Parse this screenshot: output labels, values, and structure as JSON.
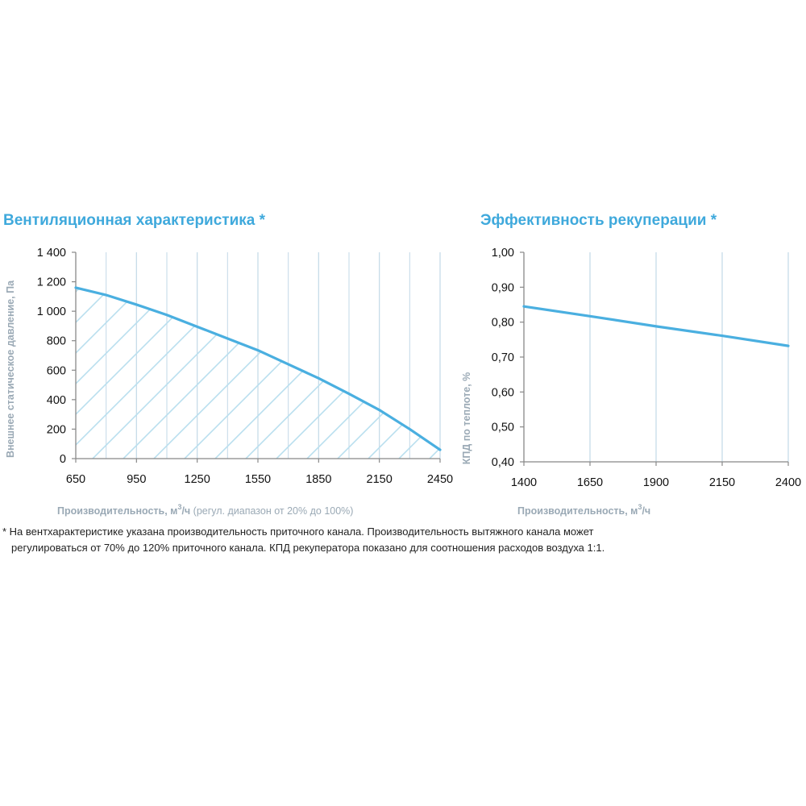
{
  "chart_data": [
    {
      "type": "area",
      "title": "Вентиляционная характеристика *",
      "xlabel": "Производительность, м",
      "xlabel_sup": "3",
      "xlabel_unit": "/ч",
      "xlabel_note": " (регул. диапазон от 20% до 100%)",
      "ylabel": "Внешнее статическое давление, Па",
      "xlim": [
        650,
        2450
      ],
      "ylim": [
        0,
        1400
      ],
      "x_ticks": [
        650,
        950,
        1250,
        1550,
        1850,
        2150,
        2450
      ],
      "x_tick_labels": [
        "650",
        "950",
        "1250",
        "1550",
        "1850",
        "2150",
        "2450"
      ],
      "y_ticks": [
        0,
        200,
        400,
        600,
        800,
        1000,
        1200,
        1400
      ],
      "y_tick_labels": [
        "0",
        "200",
        "400",
        "600",
        "800",
        "1 000",
        "1 200",
        "1 400"
      ],
      "grid": "vertical",
      "fill": "hatched",
      "series": [
        {
          "x": [
            650,
            800,
            950,
            1100,
            1250,
            1400,
            1550,
            1700,
            1850,
            2000,
            2150,
            2300,
            2450
          ],
          "y": [
            1160,
            1110,
            1045,
            975,
            895,
            815,
            735,
            640,
            545,
            440,
            330,
            200,
            60
          ]
        }
      ]
    },
    {
      "type": "line",
      "title": "Эффективность рекуперации *",
      "xlabel": "Производительность, м",
      "xlabel_sup": "3",
      "xlabel_unit": "/ч",
      "ylabel": "КПД по теплоте, %",
      "xlim": [
        1400,
        2400
      ],
      "ylim": [
        0.4,
        1.0
      ],
      "x_ticks": [
        1400,
        1650,
        1900,
        2150,
        2400
      ],
      "x_tick_labels": [
        "1400",
        "1650",
        "1900",
        "2150",
        "2400"
      ],
      "y_ticks": [
        0.4,
        0.5,
        0.6,
        0.7,
        0.8,
        0.9,
        1.0
      ],
      "y_tick_labels": [
        "0,40",
        "0,50",
        "0,60",
        "0,70",
        "0,80",
        "0,90",
        "1,00"
      ],
      "grid": "vertical",
      "series": [
        {
          "x": [
            1400,
            1650,
            1900,
            2150,
            2400
          ],
          "y": [
            0.845,
            0.817,
            0.788,
            0.761,
            0.732
          ]
        }
      ]
    }
  ],
  "footnote": {
    "line1": "* На вентхарактеристике указана производительность приточного канала. Производительность вытяжного канала может",
    "line2": "регулироваться от 70% до 120% приточного канала. КПД рекуператора показано для соотношения расходов воздуха 1:1."
  },
  "colors": {
    "title": "#3fa9dc",
    "line": "#4aafe0",
    "grid": "#c7dbe9",
    "axis": "#888888",
    "hatch": "#b9dfee",
    "axis_title": "#9aa9b5"
  }
}
